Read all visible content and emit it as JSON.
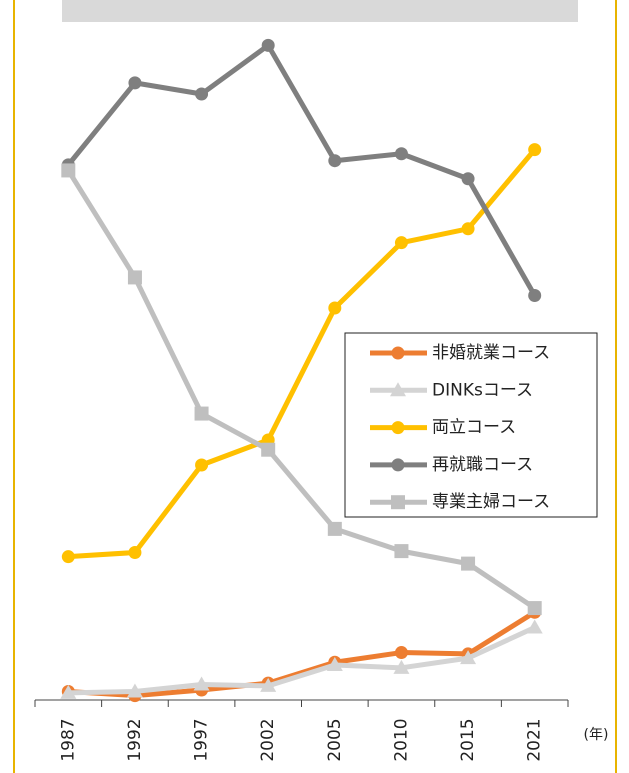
{
  "chart_data": {
    "type": "line",
    "categories": [
      "1987",
      "1992",
      "1997",
      "2002",
      "2005",
      "2010",
      "2015",
      "2021"
    ],
    "x_unit": "(年)",
    "ylim": [
      0,
      47
    ],
    "legend": "right",
    "series": [
      {
        "name": "非婚就業コース",
        "color": "#ed7d31",
        "marker": "circle",
        "values": [
          0.4,
          0.1,
          0.5,
          1.0,
          2.5,
          3.2,
          3.1,
          6.1
        ]
      },
      {
        "name": "DINKsコース",
        "color": "#d4d4d4",
        "marker": "triangle",
        "values": [
          0.3,
          0.4,
          0.9,
          0.8,
          2.3,
          2.1,
          2.8,
          5.0
        ]
      },
      {
        "name": "両立コース",
        "color": "#ffc000",
        "marker": "circle",
        "values": [
          10.1,
          10.4,
          16.7,
          18.5,
          28.0,
          32.7,
          33.7,
          39.4
        ]
      },
      {
        "name": "再就職コース",
        "color": "#7f7f7f",
        "marker": "circle",
        "values": [
          38.3,
          44.2,
          43.4,
          46.9,
          38.6,
          39.1,
          37.3,
          28.9
        ]
      },
      {
        "name": "専業主婦コース",
        "color": "#bfbfbf",
        "marker": "square",
        "values": [
          37.9,
          30.2,
          20.4,
          17.8,
          12.1,
          10.5,
          9.6,
          6.4
        ]
      }
    ]
  }
}
